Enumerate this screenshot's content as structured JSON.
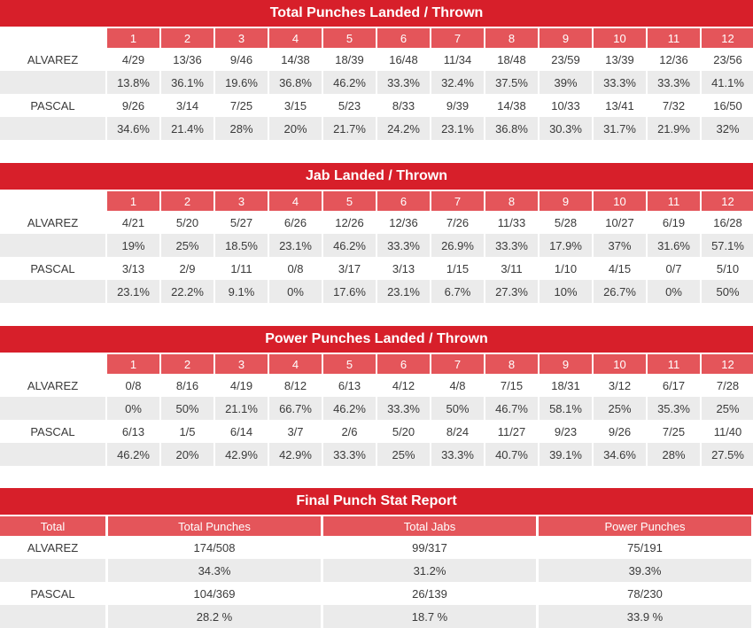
{
  "sections": [
    {
      "title": "Total Punches Landed / Thrown",
      "rounds": [
        "1",
        "2",
        "3",
        "4",
        "5",
        "6",
        "7",
        "8",
        "9",
        "10",
        "11",
        "12"
      ],
      "fighters": [
        {
          "name": "ALVAREZ",
          "landed": [
            "4/29",
            "13/36",
            "9/46",
            "14/38",
            "18/39",
            "16/48",
            "11/34",
            "18/48",
            "23/59",
            "13/39",
            "12/36",
            "23/56"
          ],
          "pct": [
            "13.8%",
            "36.1%",
            "19.6%",
            "36.8%",
            "46.2%",
            "33.3%",
            "32.4%",
            "37.5%",
            "39%",
            "33.3%",
            "33.3%",
            "41.1%"
          ]
        },
        {
          "name": "PASCAL",
          "landed": [
            "9/26",
            "3/14",
            "7/25",
            "3/15",
            "5/23",
            "8/33",
            "9/39",
            "14/38",
            "10/33",
            "13/41",
            "7/32",
            "16/50"
          ],
          "pct": [
            "34.6%",
            "21.4%",
            "28%",
            "20%",
            "21.7%",
            "24.2%",
            "23.1%",
            "36.8%",
            "30.3%",
            "31.7%",
            "21.9%",
            "32%"
          ]
        }
      ]
    },
    {
      "title": "Jab Landed / Thrown",
      "rounds": [
        "1",
        "2",
        "3",
        "4",
        "5",
        "6",
        "7",
        "8",
        "9",
        "10",
        "11",
        "12"
      ],
      "fighters": [
        {
          "name": "ALVAREZ",
          "landed": [
            "4/21",
            "5/20",
            "5/27",
            "6/26",
            "12/26",
            "12/36",
            "7/26",
            "11/33",
            "5/28",
            "10/27",
            "6/19",
            "16/28"
          ],
          "pct": [
            "19%",
            "25%",
            "18.5%",
            "23.1%",
            "46.2%",
            "33.3%",
            "26.9%",
            "33.3%",
            "17.9%",
            "37%",
            "31.6%",
            "57.1%"
          ]
        },
        {
          "name": "PASCAL",
          "landed": [
            "3/13",
            "2/9",
            "1/11",
            "0/8",
            "3/17",
            "3/13",
            "1/15",
            "3/11",
            "1/10",
            "4/15",
            "0/7",
            "5/10"
          ],
          "pct": [
            "23.1%",
            "22.2%",
            "9.1%",
            "0%",
            "17.6%",
            "23.1%",
            "6.7%",
            "27.3%",
            "10%",
            "26.7%",
            "0%",
            "50%"
          ]
        }
      ]
    },
    {
      "title": "Power Punches Landed / Thrown",
      "rounds": [
        "1",
        "2",
        "3",
        "4",
        "5",
        "6",
        "7",
        "8",
        "9",
        "10",
        "11",
        "12"
      ],
      "fighters": [
        {
          "name": "ALVAREZ",
          "landed": [
            "0/8",
            "8/16",
            "4/19",
            "8/12",
            "6/13",
            "4/12",
            "4/8",
            "7/15",
            "18/31",
            "3/12",
            "6/17",
            "7/28"
          ],
          "pct": [
            "0%",
            "50%",
            "21.1%",
            "66.7%",
            "46.2%",
            "33.3%",
            "50%",
            "46.7%",
            "58.1%",
            "25%",
            "35.3%",
            "25%"
          ]
        },
        {
          "name": "PASCAL",
          "landed": [
            "6/13",
            "1/5",
            "6/14",
            "3/7",
            "2/6",
            "5/20",
            "8/24",
            "11/27",
            "9/23",
            "9/26",
            "7/25",
            "11/40"
          ],
          "pct": [
            "46.2%",
            "20%",
            "42.9%",
            "42.9%",
            "33.3%",
            "25%",
            "33.3%",
            "40.7%",
            "39.1%",
            "34.6%",
            "28%",
            "27.5%"
          ]
        }
      ]
    }
  ],
  "final": {
    "title": "Final Punch Stat Report",
    "headers": [
      "Total",
      "Total Punches",
      "Total Jabs",
      "Power Punches"
    ],
    "fighters": [
      {
        "name": "ALVAREZ",
        "counts": [
          "174/508",
          "99/317",
          "75/191"
        ],
        "pcts": [
          "34.3%",
          "31.2%",
          "39.3%"
        ]
      },
      {
        "name": "PASCAL",
        "counts": [
          "104/369",
          "26/139",
          "78/230"
        ],
        "pcts": [
          "28.2 %",
          "18.7 %",
          "33.9 %"
        ]
      }
    ]
  },
  "colors": {
    "title_bg": "#d71f2a",
    "header_bg": "#e4555a",
    "shade": "#ebebeb",
    "text": "#3a3a3a"
  }
}
